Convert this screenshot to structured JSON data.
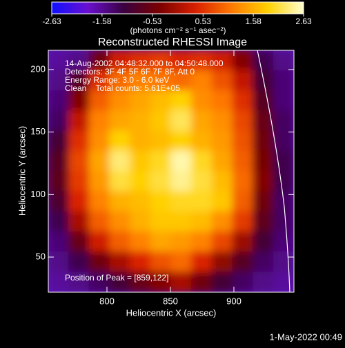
{
  "chart_data": {
    "type": "heatmap",
    "title": "Reconstructed RHESSI Image",
    "xlabel": "Heliocentric X (arcsec)",
    "ylabel": "Heliocentric Y (arcsec)",
    "colorbar_label": "(photons cm⁻² s⁻¹ asec⁻²)",
    "clim": [
      -2.63,
      2.63
    ],
    "cticks": [
      -2.63,
      -1.58,
      -0.53,
      0.53,
      1.58,
      2.63
    ],
    "colormap": [
      "#1010ff",
      "#6a10d0",
      "#3a0040",
      "#7a0000",
      "#d82000",
      "#ff7a00",
      "#ffd000",
      "#ffffd0"
    ],
    "xlim": [
      753.8,
      947.3
    ],
    "xticks": [
      800,
      850,
      900
    ],
    "ylim": [
      21.9,
      215.4
    ],
    "yticks": [
      50,
      100,
      150,
      200
    ],
    "annotations": [
      "14-Aug-2002 04:48:32.000 to 04:50:48.000",
      "Detectors: 3F 4F 5F 6F 7F 8F, Att 0",
      "Energy Range: 3.0 - 6.0 keV",
      "Clean    Total counts: 5.61E+05"
    ],
    "peak_label": "Position of Peak = [859,122]",
    "footer": "1-May-2022 00:49",
    "z": [
      [
        -1.6,
        -1.5,
        -0.5,
        0.3,
        0.5,
        0.6,
        0.4,
        0.5,
        0.3,
        -0.3,
        -1.2,
        -1.5
      ],
      [
        -1.5,
        -0.8,
        0.5,
        1.0,
        1.2,
        1.1,
        1.0,
        1.2,
        0.8,
        0.2,
        -1.0,
        -1.4
      ],
      [
        -1.4,
        -0.3,
        0.9,
        1.3,
        1.5,
        1.7,
        1.9,
        1.3,
        1.1,
        0.5,
        -0.8,
        -1.4
      ],
      [
        -1.3,
        0.2,
        1.2,
        1.5,
        1.6,
        1.8,
        2.2,
        1.5,
        1.3,
        0.7,
        -0.6,
        -1.3
      ],
      [
        -1.0,
        0.5,
        1.3,
        1.9,
        1.6,
        1.7,
        1.9,
        1.6,
        1.4,
        0.8,
        -0.5,
        -1.3
      ],
      [
        -0.8,
        0.7,
        1.5,
        2.3,
        1.8,
        2.0,
        2.5,
        2.0,
        1.5,
        0.9,
        -0.4,
        -1.2
      ],
      [
        -0.7,
        0.6,
        1.4,
        2.1,
        1.9,
        2.1,
        2.4,
        2.1,
        1.7,
        1.0,
        -0.3,
        -1.2
      ],
      [
        -0.9,
        0.4,
        1.2,
        1.6,
        1.7,
        1.9,
        2.0,
        2.0,
        1.8,
        0.9,
        -0.5,
        -1.3
      ],
      [
        -1.2,
        0.0,
        0.9,
        1.3,
        1.6,
        1.8,
        1.8,
        1.7,
        1.3,
        0.6,
        -0.7,
        -1.3
      ],
      [
        -1.4,
        -0.6,
        0.3,
        0.9,
        1.2,
        1.5,
        1.4,
        1.2,
        0.7,
        -0.1,
        -1.0,
        -1.4
      ],
      [
        -1.5,
        -1.2,
        -0.5,
        0.0,
        0.4,
        0.8,
        1.0,
        0.4,
        -0.2,
        -0.8,
        -1.3,
        -1.5
      ],
      [
        -1.6,
        -1.5,
        -1.3,
        -1.0,
        -0.6,
        -0.3,
        0.0,
        -0.5,
        -1.0,
        -1.3,
        -1.5,
        -1.6
      ]
    ]
  }
}
